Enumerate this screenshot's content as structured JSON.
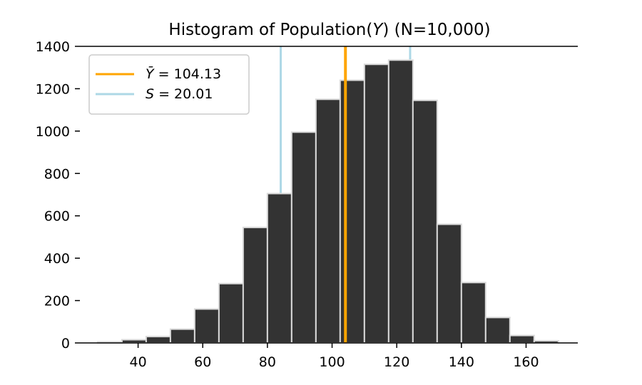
{
  "chart_data": {
    "type": "bar",
    "title": "Histogram of Population(Y) (N=10,000)",
    "title_parts": {
      "before": "Histogram of Population(",
      "var": "Y",
      "after": ") (N=10,000)"
    },
    "xlabel": "",
    "ylabel": "",
    "xlim": [
      22,
      176
    ],
    "ylim": [
      0,
      1400
    ],
    "x_ticks": [
      40,
      60,
      80,
      100,
      120,
      140,
      160
    ],
    "y_ticks": [
      0,
      200,
      400,
      600,
      800,
      1000,
      1200,
      1400
    ],
    "bin_edges": [
      27.5,
      35,
      42.5,
      50,
      57.5,
      65,
      72.5,
      80,
      87.5,
      95,
      102.5,
      110,
      117.5,
      125,
      132.5,
      140,
      147.5,
      155,
      162.5,
      170
    ],
    "counts": [
      5,
      15,
      30,
      65,
      160,
      280,
      545,
      705,
      995,
      1150,
      1240,
      1315,
      1335,
      1145,
      560,
      285,
      120,
      35,
      10
    ],
    "bar_color": "#333333",
    "bar_edge_color": "#d9d9d9",
    "mean": 104.13,
    "std": 20.01,
    "mean_color": "#ffa500",
    "std_color": "#add8e6",
    "grid": false,
    "legend_position": "top-left",
    "legend": [
      {
        "symbol": "Ȳ",
        "text": " = 104.13",
        "color": "#ffa500"
      },
      {
        "symbol": "S",
        "text": " = 20.01",
        "color": "#add8e6"
      }
    ]
  }
}
